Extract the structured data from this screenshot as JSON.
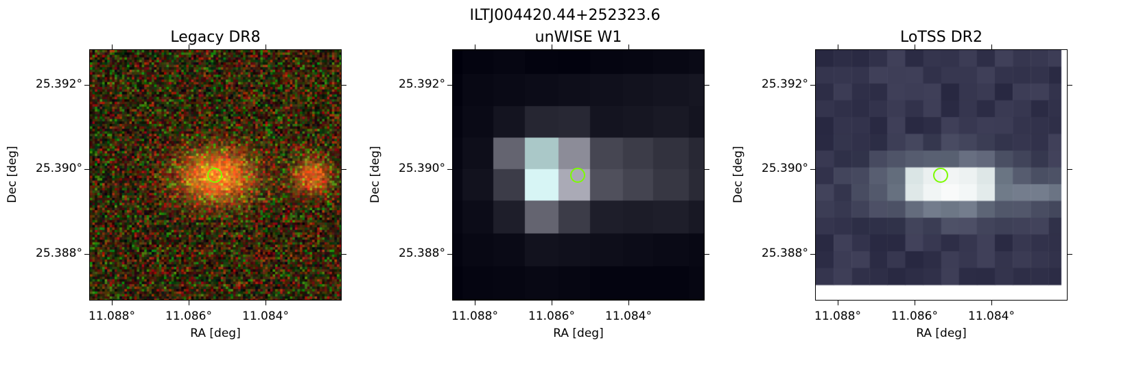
{
  "figure": {
    "title": "ILTJ004420.44+252323.6"
  },
  "panels": [
    {
      "title": "Legacy DR8",
      "xlabel": "RA [deg]",
      "ylabel": "Dec [deg]",
      "xticks": [
        "11.088°",
        "11.086°",
        "11.084°"
      ],
      "yticks": [
        "25.392°",
        "25.390°",
        "25.388°"
      ],
      "marker_color": "#7cfc00"
    },
    {
      "title": "unWISE W1",
      "xlabel": "RA [deg]",
      "ylabel": "Dec [deg]",
      "xticks": [
        "11.088°",
        "11.086°",
        "11.084°"
      ],
      "yticks": [
        "25.392°",
        "25.390°",
        "25.388°"
      ],
      "marker_color": "#7cfc00"
    },
    {
      "title": "LoTSS DR2",
      "xlabel": "RA [deg]",
      "ylabel": "Dec [deg]",
      "xticks": [
        "11.088°",
        "11.086°",
        "11.084°"
      ],
      "yticks": [
        "25.392°",
        "25.390°",
        "25.388°"
      ],
      "marker_color": "#7cfc00"
    }
  ]
}
